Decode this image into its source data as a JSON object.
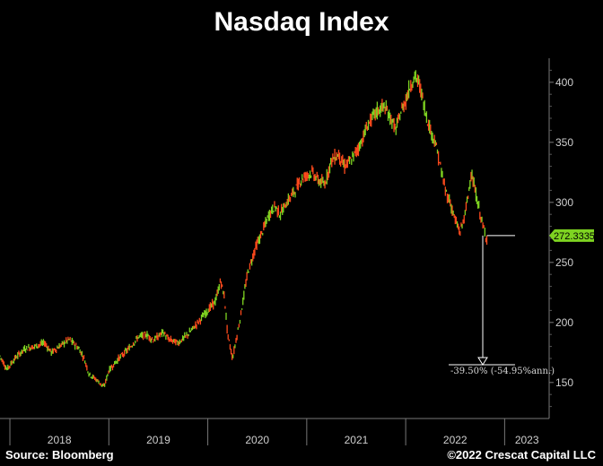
{
  "chart_data": {
    "type": "line",
    "title": "Nasdaq Index",
    "source": "Source: Bloomberg",
    "copyright": "©2022 Crescat Capital LLC",
    "ylim": [
      120,
      420
    ],
    "yticks": [
      150,
      200,
      250,
      300,
      350,
      400
    ],
    "xtick_labels": [
      "2018",
      "2019",
      "2020",
      "2021",
      "2022",
      "2023"
    ],
    "x_range": [
      2017.9,
      2023.45
    ],
    "last_value_label": "272.3335",
    "last_value": 272.33,
    "drawdown_annotation": "-39.50% (-54.95%ann.)",
    "drawdown_target": 164.8,
    "series": [
      {
        "x": [
          2017.9,
          2017.97,
          2018.05,
          2018.15,
          2018.25,
          2018.35,
          2018.42,
          2018.5,
          2018.6,
          2018.7,
          2018.75,
          2018.8,
          2018.88,
          2018.95,
          2019.0,
          2019.1,
          2019.2,
          2019.3,
          2019.38,
          2019.45,
          2019.55,
          2019.6,
          2019.7,
          2019.8,
          2019.9,
          2020.0,
          2020.08,
          2020.13,
          2020.17,
          2020.2,
          2020.25,
          2020.32,
          2020.4,
          2020.48,
          2020.55,
          2020.62,
          2020.68,
          2020.73,
          2020.8,
          2020.88,
          2020.95,
          2021.05,
          2021.12,
          2021.18,
          2021.25,
          2021.32,
          2021.38,
          2021.45,
          2021.55,
          2021.62,
          2021.7,
          2021.78,
          2021.85,
          2021.9,
          2021.95,
          2022.0,
          2022.05,
          2022.1,
          2022.15,
          2022.2,
          2022.25,
          2022.3,
          2022.35,
          2022.4,
          2022.45,
          2022.5,
          2022.55,
          2022.6,
          2022.63,
          2022.66,
          2022.7,
          2022.74,
          2022.78,
          2022.82
        ],
        "values": [
          172,
          161,
          170,
          178,
          180,
          183,
          175,
          180,
          186,
          178,
          170,
          157,
          152,
          146,
          160,
          170,
          178,
          188,
          190,
          185,
          192,
          186,
          183,
          190,
          200,
          210,
          218,
          235,
          220,
          190,
          170,
          200,
          240,
          262,
          275,
          290,
          297,
          290,
          300,
          310,
          320,
          325,
          318,
          315,
          335,
          340,
          330,
          335,
          350,
          365,
          375,
          380,
          370,
          360,
          375,
          385,
          398,
          405,
          395,
          375,
          360,
          350,
          330,
          310,
          300,
          285,
          275,
          290,
          305,
          325,
          310,
          295,
          280,
          270
        ]
      }
    ]
  }
}
